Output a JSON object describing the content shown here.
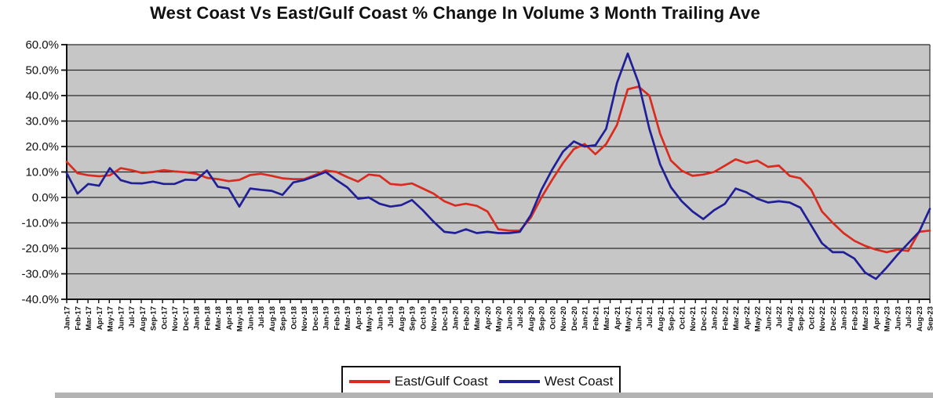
{
  "chart_data": {
    "type": "line",
    "title": "West Coast Vs East/Gulf Coast % Change In Volume 3 Month Trailing Ave",
    "xlabel": "",
    "ylabel": "",
    "ylim": [
      -40,
      60
    ],
    "ytick_step": 10,
    "ytick_labels": [
      "60.0%",
      "50.0%",
      "40.0%",
      "30.0%",
      "20.0%",
      "10.0%",
      "0.0%",
      "-10.0%",
      "-20.0%",
      "-30.0%",
      "-40.0%"
    ],
    "grid": true,
    "legend_position": "bottom",
    "plot_bg_color": "#c6c6c6",
    "gridline_color": "#2a2a2a",
    "x_labels": [
      "Jan-17",
      "Feb-17",
      "Mar-17",
      "Apr-17",
      "May-17",
      "Jun-17",
      "Jul-17",
      "Aug-17",
      "Sep-17",
      "Oct-17",
      "Nov-17",
      "Dec-17",
      "Jan-18",
      "Feb-18",
      "Mar-18",
      "Apr-18",
      "May-18",
      "Jun-18",
      "Jul-18",
      "Aug-18",
      "Sep-18",
      "Oct-18",
      "Nov-18",
      "Dec-18",
      "Jan-19",
      "Feb-19",
      "Mar-19",
      "Apr-19",
      "May-19",
      "Jun-19",
      "Jul-19",
      "Aug-19",
      "Sep-19",
      "Oct-19",
      "Nov-19",
      "Dec-19",
      "Jan-20",
      "Feb-20",
      "Mar-20",
      "Apr-20",
      "May-20",
      "Jun-20",
      "Jul-20",
      "Aug-20",
      "Sep-20",
      "Oct-20",
      "Nov-20",
      "Dec-20",
      "Jan-21",
      "Feb-21",
      "Mar-21",
      "Apr-21",
      "May-21",
      "Jun-21",
      "Jul-21",
      "Aug-21",
      "Sep-21",
      "Oct-21",
      "Nov-21",
      "Dec-21",
      "Jan-22",
      "Feb-22",
      "Mar-22",
      "Apr-22",
      "May-22",
      "Jun-22",
      "Jul-22",
      "Aug-22",
      "Sep-22",
      "Oct-22",
      "Nov-22",
      "Dec-22",
      "Jan-23",
      "Feb-23",
      "Mar-23",
      "Apr-23",
      "May-23",
      "Jun-23",
      "Jul-23",
      "Aug-23",
      "Sep-23"
    ],
    "series": [
      {
        "name": "East/Gulf Coast",
        "color": "#d92b1e",
        "values": [
          14.0,
          9.5,
          8.7,
          8.3,
          8.7,
          11.5,
          10.7,
          9.6,
          10.0,
          10.7,
          10.2,
          9.9,
          9.3,
          7.7,
          7.2,
          6.4,
          6.9,
          8.8,
          9.3,
          8.5,
          7.5,
          7.2,
          7.2,
          8.8,
          10.6,
          10.0,
          8.0,
          6.2,
          9.0,
          8.5,
          5.3,
          4.9,
          5.5,
          3.5,
          1.5,
          -1.5,
          -3.2,
          -2.5,
          -3.3,
          -5.5,
          -12.5,
          -13.0,
          -13.0,
          -8.0,
          0.0,
          7.0,
          13.5,
          19.0,
          21.0,
          17.0,
          21.0,
          28.5,
          42.5,
          43.5,
          40.0,
          25.0,
          14.5,
          10.5,
          8.5,
          9.0,
          10.0,
          12.5,
          15.0,
          13.5,
          14.5,
          12.0,
          12.5,
          8.5,
          7.5,
          3.0,
          -5.5,
          -10.0,
          -14.0,
          -17.0,
          -19.0,
          -20.5,
          -21.5,
          -20.5,
          -21.0,
          -13.5,
          -13.0
        ]
      },
      {
        "name": "West Coast",
        "color": "#201f97",
        "values": [
          9.5,
          1.5,
          5.3,
          4.6,
          11.5,
          6.8,
          5.6,
          5.5,
          6.2,
          5.3,
          5.3,
          7.0,
          6.8,
          10.6,
          4.2,
          3.5,
          -3.6,
          3.5,
          3.0,
          2.6,
          1.0,
          5.9,
          6.8,
          8.3,
          10.0,
          6.8,
          4.0,
          -0.5,
          0.0,
          -2.5,
          -3.6,
          -3.0,
          -1.0,
          -5.0,
          -9.5,
          -13.5,
          -14.0,
          -12.5,
          -14.0,
          -13.5,
          -14.0,
          -14.0,
          -13.5,
          -7.0,
          3.0,
          11.0,
          18.0,
          22.0,
          20.0,
          20.5,
          27.0,
          45.0,
          56.5,
          45.0,
          27.0,
          13.0,
          4.0,
          -1.5,
          -5.5,
          -8.5,
          -5.0,
          -2.5,
          3.5,
          2.0,
          -0.5,
          -2.0,
          -1.5,
          -2.0,
          -4.0,
          -11.0,
          -18.0,
          -21.5,
          -21.5,
          -24.0,
          -29.5,
          -32.0,
          -27.5,
          -22.5,
          -18.0,
          -13.5,
          -4.5
        ]
      }
    ]
  }
}
